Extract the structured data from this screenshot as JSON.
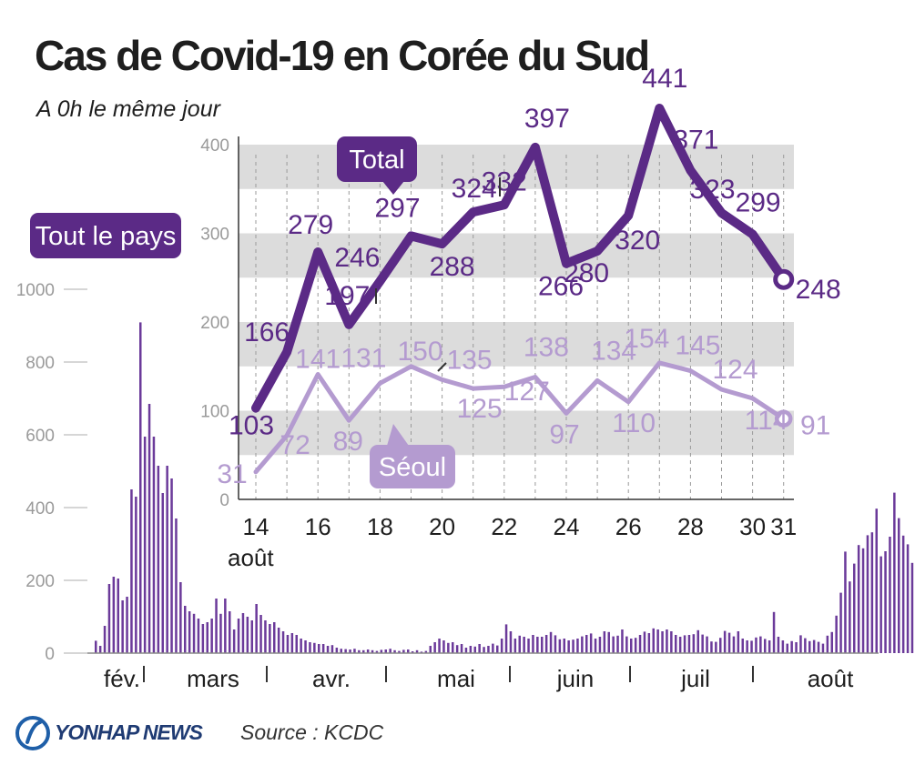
{
  "header": {
    "title": "Cas de Covid-19 en Corée du Sud",
    "subtitle": "A 0h le même jour"
  },
  "footer": {
    "brand": "YONHAP NEWS",
    "source": "Source : KCDC"
  },
  "colors": {
    "total": "#5b2a86",
    "seoul": "#b49bd0",
    "bars": "#6b3a9a",
    "band": "#dcdcdc",
    "axis_text": "#9a9a9a"
  },
  "chart_data": [
    {
      "type": "bar",
      "badge": "Tout le pays",
      "months": [
        "fév.",
        "mars",
        "avr.",
        "mai",
        "juin",
        "juil",
        "août"
      ],
      "ylim": [
        0,
        1000
      ],
      "yticks": [
        "0",
        "200",
        "400",
        "600",
        "800",
        "1000"
      ],
      "values": [
        34,
        20,
        75,
        190,
        210,
        205,
        145,
        155,
        450,
        430,
        909,
        595,
        685,
        595,
        515,
        440,
        515,
        480,
        370,
        195,
        130,
        115,
        108,
        95,
        80,
        85,
        95,
        150,
        108,
        150,
        115,
        65,
        95,
        110,
        100,
        90,
        135,
        105,
        90,
        80,
        85,
        70,
        60,
        50,
        55,
        50,
        40,
        35,
        30,
        28,
        25,
        25,
        20,
        22,
        15,
        12,
        11,
        10,
        12,
        8,
        8,
        10,
        8,
        6,
        9,
        10,
        12,
        8,
        6,
        9,
        10,
        5,
        8,
        4,
        6,
        20,
        30,
        40,
        35,
        28,
        30,
        22,
        25,
        15,
        20,
        18,
        25,
        17,
        20,
        26,
        21,
        40,
        79,
        60,
        40,
        48,
        45,
        40,
        50,
        45,
        45,
        50,
        58,
        49,
        38,
        40,
        35,
        37,
        40,
        46,
        50,
        54,
        40,
        45,
        60,
        58,
        46,
        48,
        65,
        46,
        40,
        42,
        50,
        59,
        55,
        68,
        65,
        60,
        65,
        60,
        50,
        45,
        49,
        50,
        52,
        63,
        51,
        46,
        32,
        31,
        42,
        61,
        56,
        46,
        60,
        40,
        35,
        34,
        43,
        46,
        39,
        35,
        113,
        45,
        35,
        26,
        33,
        30,
        49,
        41,
        33,
        36,
        31,
        26,
        48,
        58,
        103,
        166,
        279,
        197,
        246,
        297,
        288,
        324,
        332,
        397,
        266,
        280,
        320,
        441,
        371,
        323,
        299,
        248
      ]
    },
    {
      "type": "line",
      "x": [
        "14",
        "15",
        "16",
        "17",
        "18",
        "19",
        "20",
        "21",
        "22",
        "23",
        "24",
        "25",
        "26",
        "27",
        "28",
        "29",
        "30",
        "31"
      ],
      "xticks": [
        "14",
        "16",
        "18",
        "20",
        "22",
        "24",
        "26",
        "28",
        "30",
        "31"
      ],
      "xlabel": "août",
      "ylim": [
        0,
        450
      ],
      "yticks": [
        "0",
        "100",
        "200",
        "300",
        "400"
      ],
      "series": [
        {
          "name": "Total",
          "values": [
            103,
            166,
            279,
            197,
            246,
            297,
            288,
            324,
            332,
            397,
            266,
            280,
            320,
            441,
            371,
            323,
            299,
            248
          ]
        },
        {
          "name": "Séoul",
          "values": [
            31,
            72,
            141,
            89,
            131,
            150,
            135,
            125,
            127,
            138,
            97,
            134,
            110,
            154,
            145,
            124,
            114,
            91
          ]
        }
      ]
    }
  ]
}
